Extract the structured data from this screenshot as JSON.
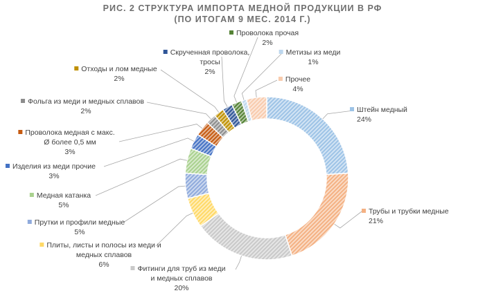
{
  "title_line1": "РИС. 2  СТРУКТУРА ИМПОРТА МЕДНОЙ ПРОДУКЦИИ В РФ",
  "title_line2": "(ПО ИТОГАМ 9 МЕС. 2014 Г.)",
  "chart_data": {
    "type": "pie",
    "variant": "doughnut",
    "value_format": "percent",
    "hatched_fill": true,
    "slices": [
      {
        "label": [
          "Штейн медный"
        ],
        "value": 24,
        "display": "24%",
        "color": "#9dc3e6"
      },
      {
        "label": [
          "Трубы и трубки медные"
        ],
        "value": 21,
        "display": "21%",
        "color": "#f4b183"
      },
      {
        "label": [
          "Фитинги для труб из меди",
          "и медных сплавов"
        ],
        "value": 20,
        "display": "20%",
        "color": "#c9c9c9"
      },
      {
        "label": [
          "Плиты, листы и полосы из меди и",
          "медных сплавов"
        ],
        "value": 6,
        "display": "6%",
        "color": "#ffd966"
      },
      {
        "label": [
          "Прутки и профили медные"
        ],
        "value": 5,
        "display": "5%",
        "color": "#8faadc"
      },
      {
        "label": [
          "Медная катанка"
        ],
        "value": 5,
        "display": "5%",
        "color": "#a9d18e"
      },
      {
        "label": [
          "Изделия из меди прочие"
        ],
        "value": 3,
        "display": "3%",
        "color": "#4472c4"
      },
      {
        "label": [
          "Проволока медная с макс.",
          "Ø более 0,5 мм"
        ],
        "value": 3,
        "display": "3%",
        "color": "#c55a11"
      },
      {
        "label": [
          "Фольга из меди и медных сплавов"
        ],
        "value": 2,
        "display": "2%",
        "color": "#8c8c8c"
      },
      {
        "label": [
          "Отходы и лом медные"
        ],
        "value": 2,
        "display": "2%",
        "color": "#bf9000"
      },
      {
        "label": [
          "Скрученная проволока,",
          "тросы"
        ],
        "value": 2,
        "display": "2%",
        "color": "#2f5597"
      },
      {
        "label": [
          "Проволока прочая"
        ],
        "value": 2,
        "display": "2%",
        "color": "#548235"
      },
      {
        "label": [
          "Метизы из меди"
        ],
        "value": 1,
        "display": "1%",
        "color": "#bdd7ee"
      },
      {
        "label": [
          "Прочее"
        ],
        "value": 4,
        "display": "4%",
        "color": "#f8cbad"
      }
    ]
  }
}
